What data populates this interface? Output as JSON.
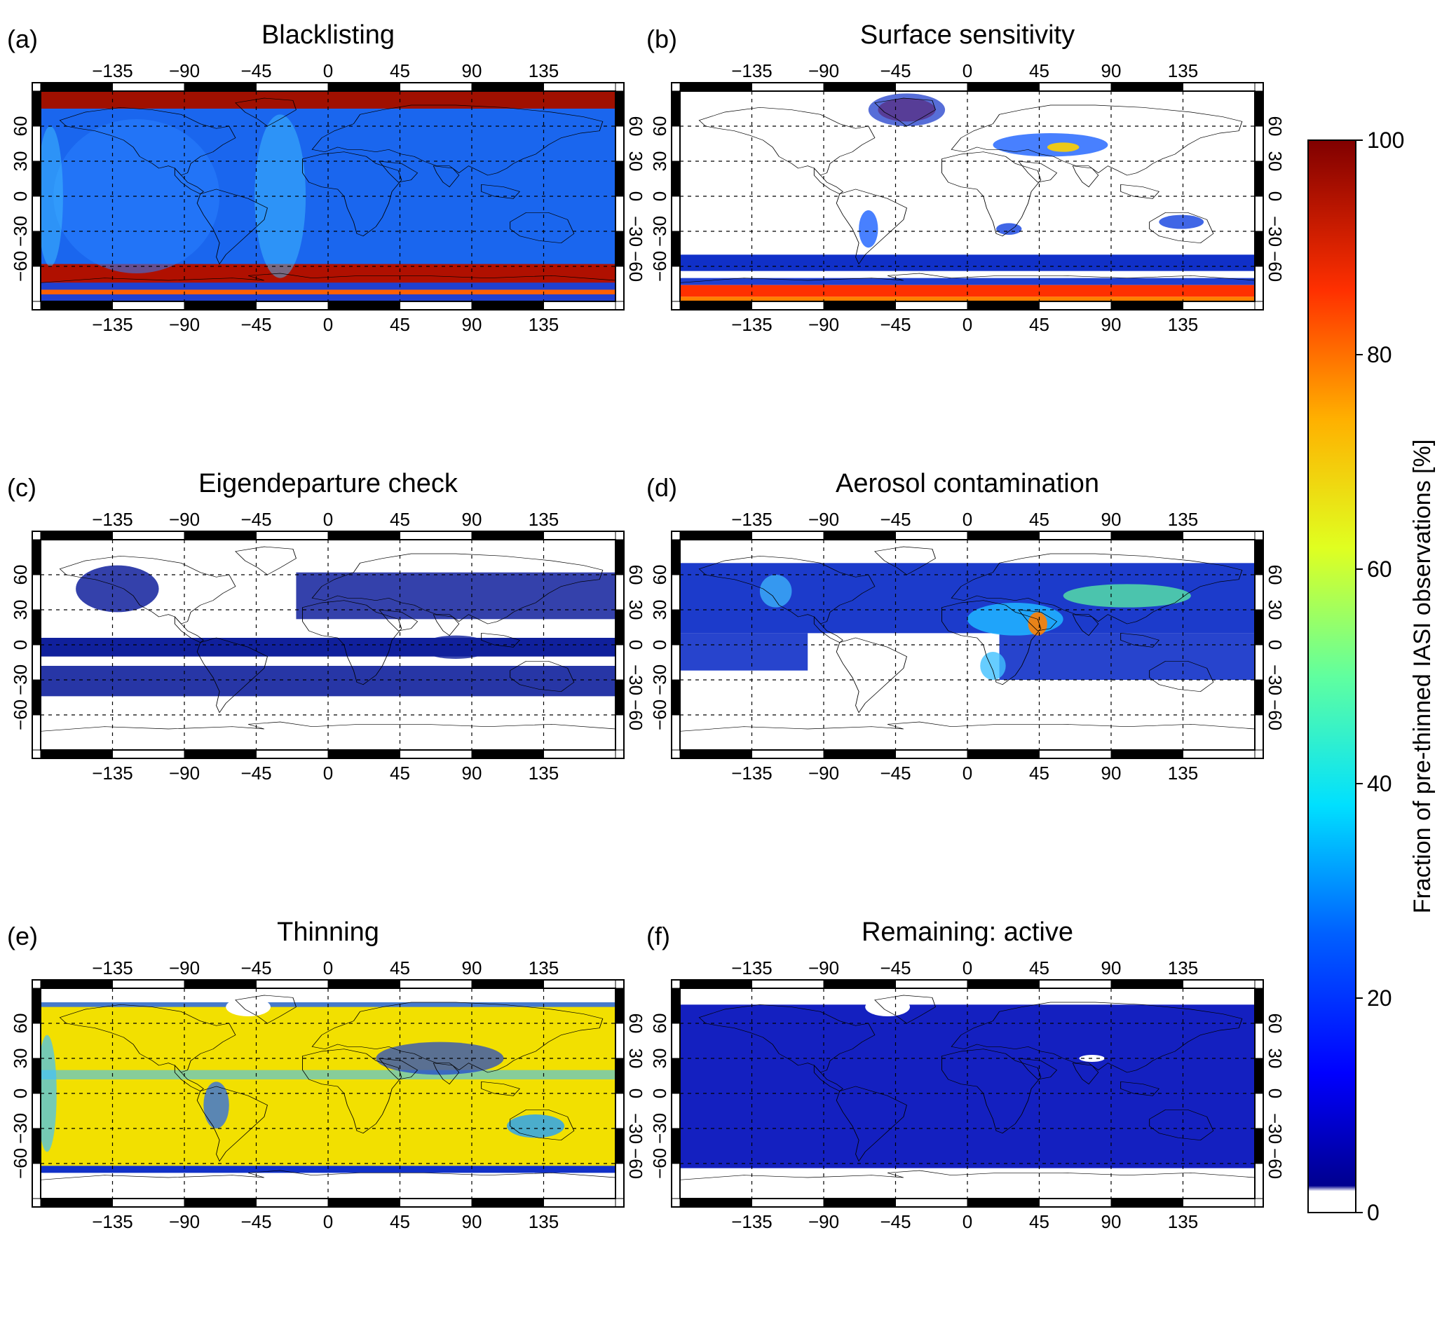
{
  "figure": {
    "colorbar": {
      "label": "Fraction of pre-thinned IASI observations [%]",
      "ticks": [
        "0",
        "20",
        "40",
        "60",
        "80",
        "100"
      ],
      "tick_values": [
        0,
        20,
        40,
        60,
        80,
        100
      ],
      "range": [
        0,
        100
      ],
      "colormap": "jet with white at 0",
      "colormap_stops": [
        "#ffffff",
        "#00008f",
        "#0000ff",
        "#0080ff",
        "#00ffff",
        "#80ff80",
        "#ffff00",
        "#ff8000",
        "#ff0000",
        "#800000"
      ]
    },
    "lon_ticks": [
      "−135",
      "−90",
      "−45",
      "0",
      "45",
      "90",
      "135"
    ],
    "lon_values": [
      -135,
      -90,
      -45,
      0,
      45,
      90,
      135
    ],
    "lat_ticks": [
      "−60",
      "−30",
      "0",
      "30",
      "60"
    ],
    "lat_values": [
      -60,
      -30,
      0,
      30,
      60
    ],
    "lat_ticks_right": [
      "−60",
      "−30",
      "0",
      "30",
      "60"
    ],
    "panels": [
      {
        "letter": "(a)",
        "title": "Blacklisting",
        "key": "a"
      },
      {
        "letter": "(b)",
        "title": "Surface sensitivity",
        "key": "b"
      },
      {
        "letter": "(c)",
        "title": "Eigendeparture check",
        "key": "c"
      },
      {
        "letter": "(d)",
        "title": "Aerosol contamination",
        "key": "d"
      },
      {
        "letter": "(e)",
        "title": "Thinning",
        "key": "e"
      },
      {
        "letter": "(f)",
        "title": "Remaining: active",
        "key": "f"
      }
    ]
  }
}
